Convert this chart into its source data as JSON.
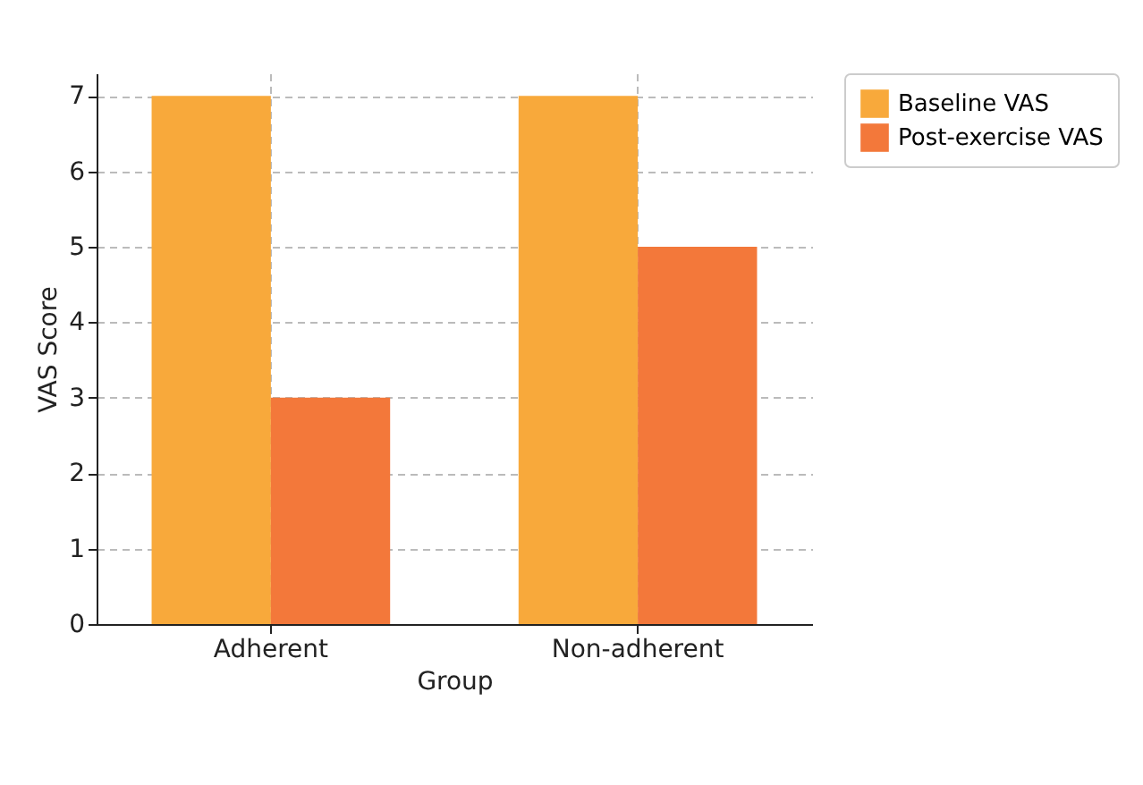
{
  "chart_data": {
    "type": "bar",
    "xlabel": "Group",
    "ylabel": "VAS Score",
    "categories": [
      "Adherent",
      "Non-adherent"
    ],
    "series": [
      {
        "name": "Baseline VAS",
        "color": "#f8a93b",
        "values": [
          7,
          7
        ]
      },
      {
        "name": "Post-exercise VAS",
        "color": "#f3783a",
        "values": [
          3,
          5
        ]
      }
    ],
    "ylim": [
      0,
      7.3
    ],
    "yticks": [
      0,
      1,
      2,
      3,
      4,
      5,
      6,
      7
    ],
    "grid": true,
    "legend": "top right"
  }
}
